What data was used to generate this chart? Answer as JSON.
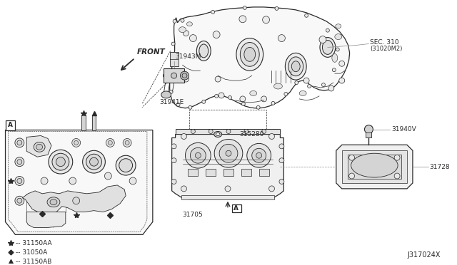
{
  "bg_color": "#ffffff",
  "diagram_id": "J317024X",
  "labels": {
    "front_arrow": "FRONT",
    "sec310_line1": "SEC. 310",
    "sec310_line2": "(31020M2)",
    "part_31943M": "31943M",
    "part_31941E": "31941E",
    "part_315280": "315280",
    "part_31940V": "31940V",
    "part_31728": "31728",
    "part_31705": "31705",
    "legend_star": "-- 31150AA",
    "legend_diamond": "-- 31050A",
    "legend_triangle": "-- 31150AB",
    "box_A": "A"
  },
  "colors": {
    "line": "#2a2a2a",
    "thin": "#444444",
    "gray": "#888888",
    "bg": "#ffffff",
    "fill_light": "#f0f0f0",
    "fill_mid": "#e0e0e0",
    "fill_dark": "#cccccc"
  }
}
